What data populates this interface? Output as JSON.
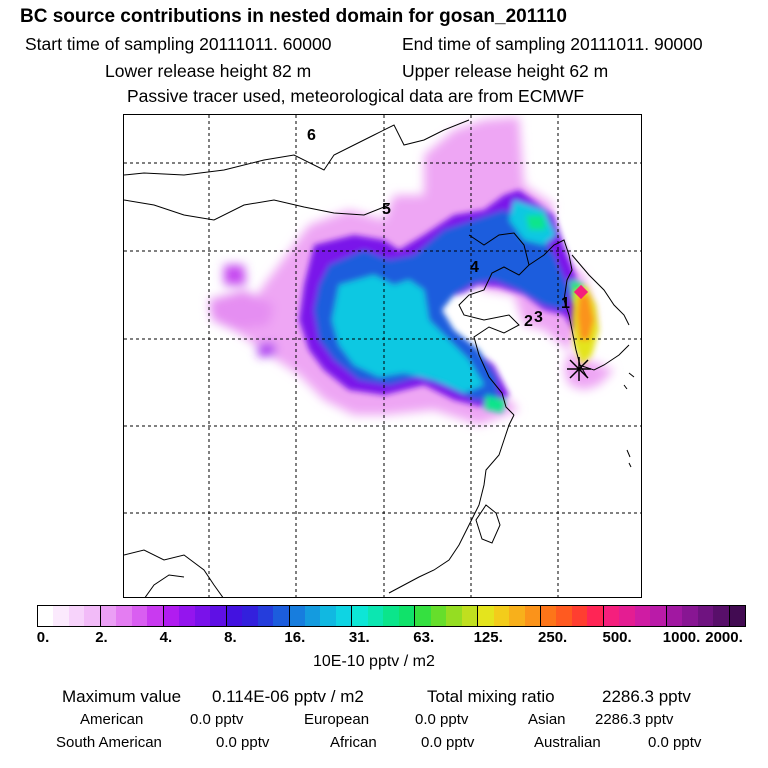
{
  "header": {
    "title": "BC  source contributions in nested domain for gosan_201110",
    "start_label": "Start time of sampling 20111011. 60000",
    "end_label": "End time of sampling 20111011. 90000",
    "lower_label": "Lower release height   82 m",
    "upper_label": "Upper release height   62 m",
    "note": "Passive tracer used, meteorological data are from ECMWF"
  },
  "map": {
    "region_labels": [
      "6",
      "5",
      "4",
      "1",
      "2",
      "3"
    ],
    "receptor_marker": "asterisk-marker"
  },
  "colorbar": {
    "colors": [
      "#ffffff",
      "#fbeafd",
      "#f7d3fb",
      "#f2bbf8",
      "#eb9ff5",
      "#e47df2",
      "#d95ef1",
      "#c93af0",
      "#b11cf0",
      "#9415ee",
      "#7a12ea",
      "#5f10e5",
      "#4312e0",
      "#3320dd",
      "#253ddc",
      "#1c5ddd",
      "#177dde",
      "#149bdf",
      "#11b8e1",
      "#0fd4e3",
      "#0de6d6",
      "#0ce6b1",
      "#0be58b",
      "#10e26a",
      "#35e040",
      "#66de2b",
      "#95dd22",
      "#c0df1f",
      "#e4e41d",
      "#f3cc1b",
      "#f8b01b",
      "#fb931a",
      "#fd7519",
      "#ff5a20",
      "#ff3e30",
      "#ff2555",
      "#f51f7d",
      "#e41d92",
      "#cf1ca3",
      "#ba1ba8",
      "#a118a1",
      "#881693",
      "#6f1380",
      "#580f6a",
      "#420b52"
    ],
    "ticks": [
      "0.",
      "2.",
      "4.",
      "8.",
      "16.",
      "31.",
      "63.",
      "125.",
      "250.",
      "500.",
      "1000.",
      "2000."
    ],
    "units": "10E-10 pptv / m2"
  },
  "stats": {
    "max_label": "Maximum value",
    "max_value": "0.114E-06 pptv / m2",
    "total_label": "Total mixing ratio",
    "total_value": "2286.3 pptv",
    "regions": [
      {
        "name": "American",
        "value": "0.0 pptv"
      },
      {
        "name": "European",
        "value": "0.0 pptv"
      },
      {
        "name": "Asian",
        "value": "2286.3 pptv"
      },
      {
        "name": "South American",
        "value": "0.0 pptv"
      },
      {
        "name": "African",
        "value": "0.0 pptv"
      },
      {
        "name": "Australian",
        "value": "0.0 pptv"
      }
    ]
  }
}
